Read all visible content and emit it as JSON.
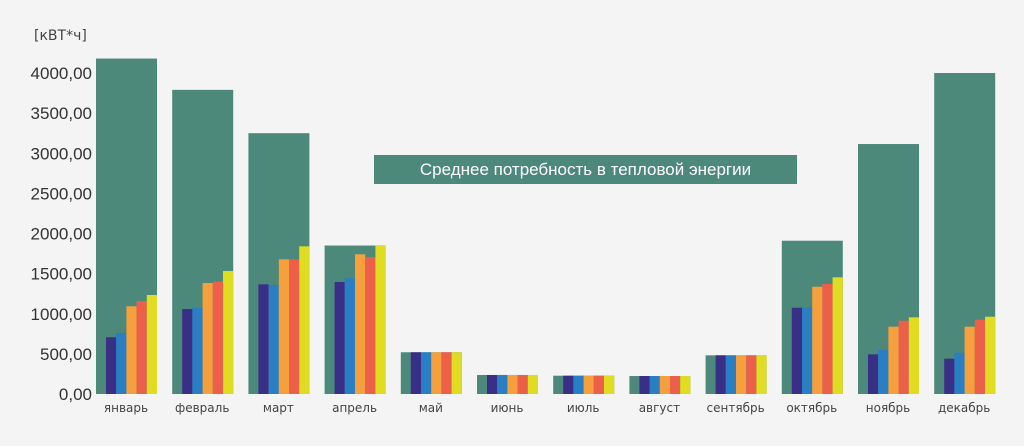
{
  "chart_data": {
    "type": "bar",
    "title": "Среднее потребность в тепловой энергии",
    "ylabel": "[кВТ*ч]",
    "ylim": [
      0,
      4000
    ],
    "yticks": [
      "0,00",
      "500,00",
      "1000,00",
      "1500,00",
      "2000,00",
      "2500,00",
      "3000,00",
      "3500,00",
      "4000,00"
    ],
    "grid": false,
    "categories": [
      "январь",
      "февраль",
      "март",
      "апрель",
      "май",
      "июнь",
      "июль",
      "август",
      "сентябрь",
      "октябрь",
      "ноябрь",
      "декабрь"
    ],
    "series": [
      {
        "color": "#4c897b",
        "values": [
          4180,
          3790,
          3250,
          1850,
          520,
          237,
          228,
          224,
          482,
          1910,
          3115,
          4000
        ]
      },
      {
        "color": "#3a2f86",
        "values": [
          707,
          1059,
          1367,
          1396,
          520,
          237,
          228,
          224,
          482,
          1075,
          494,
          440
        ]
      },
      {
        "color": "#2a7fc4",
        "values": [
          760,
          1072,
          1358,
          1442,
          520,
          237,
          228,
          224,
          482,
          1080,
          552,
          515
        ]
      },
      {
        "color": "#f5a03c",
        "values": [
          1093,
          1383,
          1678,
          1741,
          520,
          237,
          228,
          224,
          482,
          1337,
          839,
          839
        ]
      },
      {
        "color": "#ec604a",
        "values": [
          1159,
          1400,
          1678,
          1707,
          520,
          237,
          228,
          224,
          482,
          1371,
          913,
          926
        ]
      },
      {
        "color": "#e0dc22",
        "values": [
          1234,
          1533,
          1840,
          1848,
          520,
          237,
          228,
          224,
          482,
          1454,
          955,
          963
        ]
      }
    ]
  }
}
